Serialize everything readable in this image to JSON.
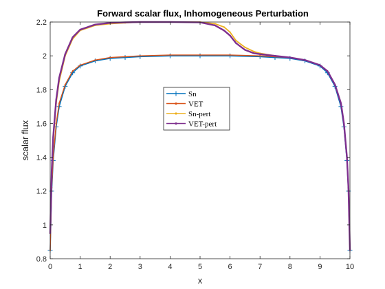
{
  "chart_data": {
    "type": "line",
    "title": "Forward scalar flux, Inhomogeneous Perturbation",
    "xlabel": "x",
    "ylabel": "scalar flux",
    "xlim": [
      0,
      10
    ],
    "ylim": [
      0.8,
      2.2
    ],
    "xticks": [
      "0",
      "1",
      "2",
      "3",
      "4",
      "5",
      "6",
      "7",
      "8",
      "9",
      "10"
    ],
    "yticks": [
      "0.8",
      "1",
      "1.2",
      "1.4",
      "1.6",
      "1.8",
      "2",
      "2.2"
    ],
    "grid": false,
    "legend_position": "center",
    "series": [
      {
        "name": "Sn",
        "color": "#0072BD",
        "marker": "plus",
        "x": [
          0,
          0.05,
          0.1,
          0.2,
          0.3,
          0.5,
          0.75,
          1,
          1.5,
          2,
          2.5,
          3,
          4,
          5,
          6,
          7,
          7.5,
          8,
          8.5,
          9,
          9.25,
          9.5,
          9.7,
          9.8,
          9.9,
          9.95,
          10
        ],
        "y": [
          0.85,
          1.2,
          1.38,
          1.58,
          1.7,
          1.82,
          1.9,
          1.94,
          1.97,
          1.985,
          1.99,
          1.995,
          2.0,
          2.0,
          2.0,
          1.995,
          1.99,
          1.985,
          1.97,
          1.94,
          1.9,
          1.82,
          1.7,
          1.58,
          1.38,
          1.2,
          0.85
        ]
      },
      {
        "name": "VET",
        "color": "#D95319",
        "marker": "dot",
        "x": [
          0,
          0.05,
          0.1,
          0.2,
          0.3,
          0.5,
          0.75,
          1,
          1.5,
          2,
          2.5,
          3,
          4,
          5,
          6,
          7,
          7.5,
          8,
          8.5,
          9,
          9.25,
          9.5,
          9.7,
          9.8,
          9.9,
          9.95,
          10
        ],
        "y": [
          0.85,
          1.22,
          1.4,
          1.6,
          1.72,
          1.83,
          1.91,
          1.945,
          1.975,
          1.99,
          1.995,
          2.0,
          2.005,
          2.005,
          2.005,
          2.0,
          1.995,
          1.99,
          1.975,
          1.945,
          1.91,
          1.83,
          1.72,
          1.6,
          1.4,
          1.22,
          0.85
        ]
      },
      {
        "name": "Sn-pert",
        "color": "#EDB120",
        "marker": "dot",
        "x": [
          0,
          0.05,
          0.1,
          0.2,
          0.3,
          0.5,
          0.75,
          1,
          1.5,
          2,
          2.5,
          3,
          4,
          5,
          5.5,
          5.8,
          6,
          6.2,
          6.5,
          6.8,
          7,
          7.5,
          8,
          8.5,
          9,
          9.25,
          9.5,
          9.7,
          9.8,
          9.9,
          9.95,
          10
        ],
        "y": [
          0.95,
          1.3,
          1.5,
          1.72,
          1.85,
          2.0,
          2.1,
          2.15,
          2.18,
          2.19,
          2.195,
          2.2,
          2.2,
          2.2,
          2.19,
          2.17,
          2.14,
          2.09,
          2.05,
          2.025,
          2.015,
          2.0,
          1.99,
          1.975,
          1.945,
          1.91,
          1.83,
          1.72,
          1.6,
          1.4,
          1.22,
          0.85
        ]
      },
      {
        "name": "VET-pert",
        "color": "#7E2F8E",
        "marker": "dot",
        "x": [
          0,
          0.05,
          0.1,
          0.2,
          0.3,
          0.5,
          0.75,
          1,
          1.5,
          2,
          2.5,
          3,
          4,
          5,
          5.5,
          5.8,
          6,
          6.2,
          6.5,
          6.8,
          7,
          7.5,
          8,
          8.5,
          9,
          9.25,
          9.5,
          9.7,
          9.8,
          9.9,
          9.95,
          10
        ],
        "y": [
          0.95,
          1.32,
          1.52,
          1.74,
          1.87,
          2.01,
          2.11,
          2.155,
          2.185,
          2.195,
          2.198,
          2.2,
          2.2,
          2.198,
          2.18,
          2.15,
          2.12,
          2.075,
          2.035,
          2.015,
          2.01,
          2.0,
          1.99,
          1.975,
          1.945,
          1.91,
          1.83,
          1.72,
          1.6,
          1.4,
          1.22,
          0.85
        ]
      }
    ]
  }
}
